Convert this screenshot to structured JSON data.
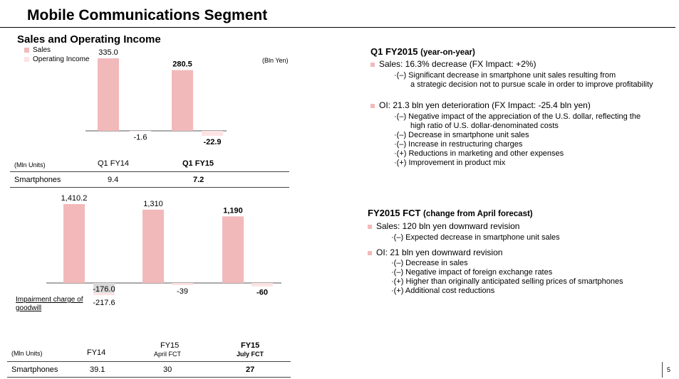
{
  "title": "Mobile Communications Segment",
  "subtitle": "Sales and Operating Income",
  "legend": [
    {
      "label": "Sales",
      "color": "#f2b9ba"
    },
    {
      "label": "Operating Income",
      "color": "#fde3e3"
    }
  ],
  "unit_label": "(Bln Yen)",
  "colors": {
    "sales": "#f2b9ba",
    "oi": "#fde3e3",
    "impairment": "#d9d9d9"
  },
  "chart_data": [
    {
      "type": "bar",
      "categories": [
        "Q1 FY14",
        "Q1 FY15"
      ],
      "series": [
        {
          "name": "Sales",
          "values": [
            335.0,
            280.5
          ]
        },
        {
          "name": "Operating Income",
          "values": [
            -1.6,
            -22.9
          ]
        }
      ],
      "value_labels": {
        "sales": [
          "335.0",
          "280.5"
        ],
        "oi": [
          "-1.6",
          "-22.9"
        ]
      },
      "bold_categories": [
        false,
        true
      ]
    },
    {
      "type": "bar",
      "categories": [
        "FY14",
        "FY15 April FCT",
        "FY15 July FCT"
      ],
      "series": [
        {
          "name": "Sales",
          "values": [
            1410.2,
            1310,
            1190
          ]
        },
        {
          "name": "Operating Income",
          "values": [
            -217.6,
            -39,
            -60
          ]
        }
      ],
      "impairment": {
        "label": "Impairment charge of goodwill",
        "value": -176.0,
        "value_label": "-176.0"
      },
      "value_labels": {
        "sales": [
          "1,410.2",
          "1,310",
          "1,190"
        ],
        "oi": [
          "-217.6",
          "-39",
          "-60"
        ]
      },
      "bold_categories": [
        false,
        false,
        true
      ]
    }
  ],
  "quarter_table": {
    "unit": "(Mln Units)",
    "col1": "Q1 FY14",
    "col2": "Q1 FY15",
    "row_label": "Smartphones",
    "val1": "9.4",
    "val2": "7.2"
  },
  "year_table": {
    "unit": "(Mln Units)",
    "col1": "FY14",
    "col2_line1": "FY15",
    "col2_line2": "April FCT",
    "col3_line1": "FY15",
    "col3_line2": "July FCT",
    "row_label": "Smartphones",
    "val1": "39.1",
    "val2": "30",
    "val3": "27"
  },
  "impairment_label_1": "Impairment charge of",
  "impairment_label_2": "goodwill",
  "q1": {
    "heading": "Q1 FY2015",
    "heading_note": "(year-on-year)",
    "sales_line": "Sales: 16.3% decrease (FX Impact:  +2%)",
    "sales_detail_1": "(–) Significant decrease in smartphone unit sales resulting from",
    "sales_detail_2": "a strategic decision not to pursue scale in order to improve profitability",
    "oi_line": "OI: 21.3 bln yen deterioration (FX Impact:  -25.4 bln yen)",
    "oi_details": [
      "(–) Negative impact of the appreciation of the U.S. dollar, reflecting the",
      "high ratio of U.S. dollar-denominated costs",
      "(–) Decrease in smartphone unit sales",
      "(–) Increase in restructuring charges",
      "(+) Reductions in marketing and other expenses",
      "(+) Improvement in product mix"
    ]
  },
  "fct": {
    "heading": "FY2015 FCT",
    "heading_note": "(change from April forecast)",
    "sales_line": "Sales: 120 bln yen downward revision",
    "sales_detail": "(–) Expected decrease in smartphone unit sales",
    "oi_line": "OI: 21 bln yen downward revision",
    "oi_details": [
      "(–) Decrease in sales",
      "(–) Negative impact of foreign exchange rates",
      "(+) Higher than originally anticipated selling prices of smartphones",
      "(+) Additional cost reductions"
    ]
  },
  "page_number": "5"
}
